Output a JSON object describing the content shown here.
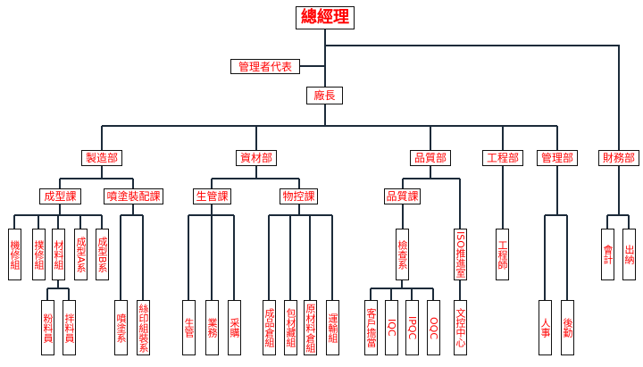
{
  "colors": {
    "text": "#ff0000",
    "border": "#111111",
    "line": "#1c2b3a"
  },
  "top": {
    "ceo": "總經理",
    "mgmt_rep": "管理者代表",
    "plant_manager": "廠長"
  },
  "departments": {
    "manufacturing": "製造部",
    "materials": "資材部",
    "quality": "品質部",
    "engineering": "工程部",
    "management": "管理部",
    "finance": "財務部"
  },
  "sections": {
    "molding": "成型課",
    "spray_assembly": "噴塗裝配課",
    "production_control": "生管課",
    "material_control": "物控課",
    "quality": "品質課"
  },
  "units": {
    "maintenance": "機修組",
    "repair": "撲修組",
    "material_group": "材料組",
    "molding_a": "成型A系",
    "molding_b": "成型B系",
    "powder": "粉料員",
    "mixing": "拌料員",
    "spray": "噴塗系",
    "silkscreen": "絲印組裝系",
    "prod_ctrl": "生管",
    "sales": "業務",
    "purchasing": "采購",
    "finished_wh": "成品倉組",
    "packaging_wh": "包材藏組",
    "raw_wh": "原材料倉組",
    "transport": "運輸組",
    "inspection": "檢查系",
    "iso": "ISO推進室",
    "customer": "客戶擔當",
    "iqc": "IQC",
    "ipqc": "IPQC",
    "oqc": "OQC",
    "doc_center": "文控中心",
    "engineer": "工程師",
    "hr": "人事",
    "logistics": "後勤",
    "accounting": "會計",
    "cashier": "出納"
  }
}
